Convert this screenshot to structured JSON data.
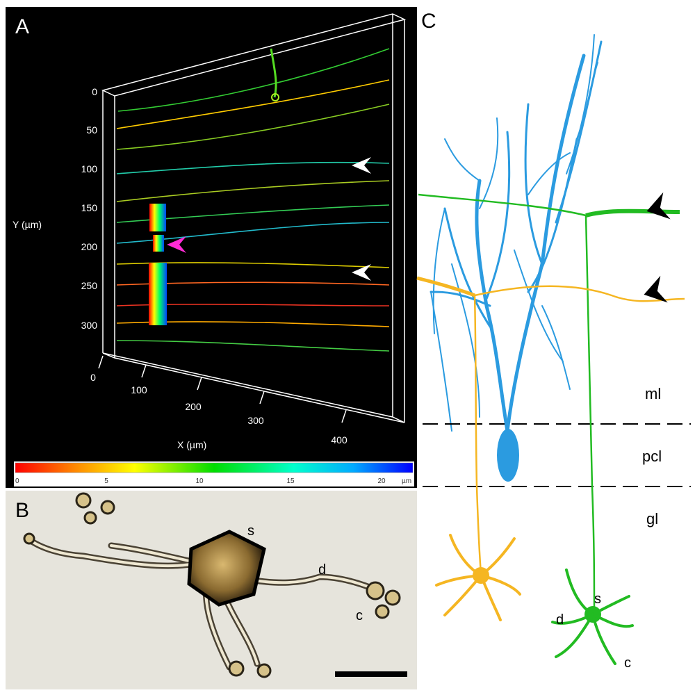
{
  "panels": {
    "a": {
      "letter": "A",
      "y_axis": {
        "title": "Y (µm)",
        "ticks": [
          "0",
          "50",
          "100",
          "150",
          "200",
          "250",
          "300"
        ]
      },
      "x_axis": {
        "title": "X (µm)",
        "ticks": [
          "0",
          "100",
          "200",
          "300",
          "400"
        ]
      },
      "colorbar": {
        "ticks": [
          "0",
          "5",
          "10",
          "15",
          "20"
        ],
        "unit": "µm",
        "colors": [
          "#ff0000",
          "#ff8800",
          "#ffff00",
          "#00dd00",
          "#00ffcc",
          "#00aaff",
          "#0000ff"
        ]
      },
      "arrowhead_colors": {
        "white": "#ffffff",
        "magenta": "#ff2bd6"
      }
    },
    "b": {
      "letter": "B",
      "labels": {
        "soma": "s",
        "dendrite": "d",
        "claw": "c"
      }
    },
    "c": {
      "letter": "C",
      "layers": {
        "molecular": "ml",
        "purkinje": "pcl",
        "granular": "gl"
      },
      "labels": {
        "soma": "s",
        "dendrite": "d",
        "claw": "c"
      },
      "colors": {
        "purkinje": "#2b9be0",
        "granule_green": "#22bb22",
        "granule_orange": "#f5b622"
      }
    }
  }
}
